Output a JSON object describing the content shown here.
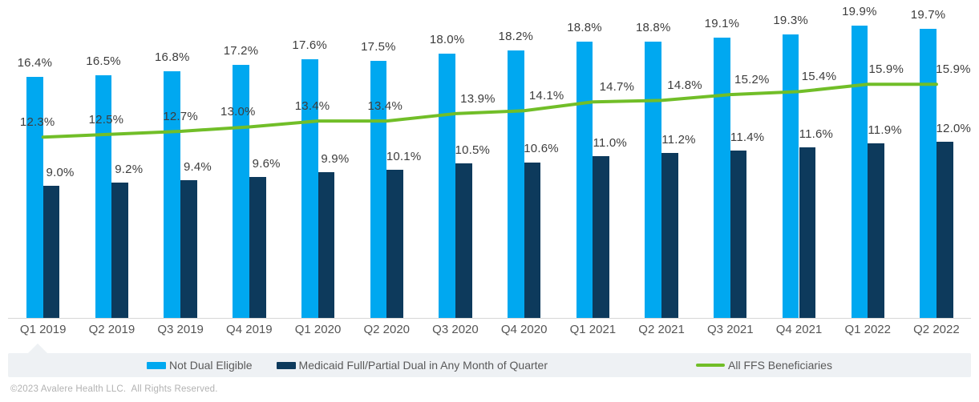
{
  "chart_data": {
    "type": "bar",
    "subtype": "grouped-bars-with-line",
    "categories": [
      "Q1 2019",
      "Q2 2019",
      "Q3 2019",
      "Q4 2019",
      "Q1 2020",
      "Q2 2020",
      "Q3 2020",
      "Q4 2020",
      "Q1 2021",
      "Q2 2021",
      "Q3 2021",
      "Q4 2021",
      "Q1 2022",
      "Q2 2022"
    ],
    "series": [
      {
        "name": "Not Dual Eligible",
        "type": "bar",
        "color": "#00a8f0",
        "values": [
          16.4,
          16.5,
          16.8,
          17.2,
          17.6,
          17.5,
          18.0,
          18.2,
          18.8,
          18.8,
          19.1,
          19.3,
          19.9,
          19.7
        ]
      },
      {
        "name": "Medicaid Full/Partial Dual in Any Month of Quarter",
        "type": "bar",
        "color": "#0d3a5c",
        "values": [
          9.0,
          9.2,
          9.4,
          9.6,
          9.9,
          10.1,
          10.5,
          10.6,
          11.0,
          11.2,
          11.4,
          11.6,
          11.9,
          12.0
        ]
      },
      {
        "name": "All FFS Beneficiaries",
        "type": "line",
        "color": "#71be28",
        "values": [
          12.3,
          12.5,
          12.7,
          13.0,
          13.4,
          13.4,
          13.9,
          14.1,
          14.7,
          14.8,
          15.2,
          15.4,
          15.9,
          15.9
        ]
      }
    ],
    "value_suffix": "%",
    "title": "",
    "xlabel": "",
    "ylabel": "",
    "ylim": [
      0,
      21
    ],
    "grid": false,
    "y_axis_visible": false,
    "legend_position": "bottom",
    "label_color": "#3d3d3d",
    "axis_label_color": "#555555",
    "axis_line_color": "#d6d6d6",
    "legend_background": "#eef1f4"
  },
  "footer": {
    "copyright": "©2023 Avalere Health LLC.  All Rights Reserved."
  }
}
